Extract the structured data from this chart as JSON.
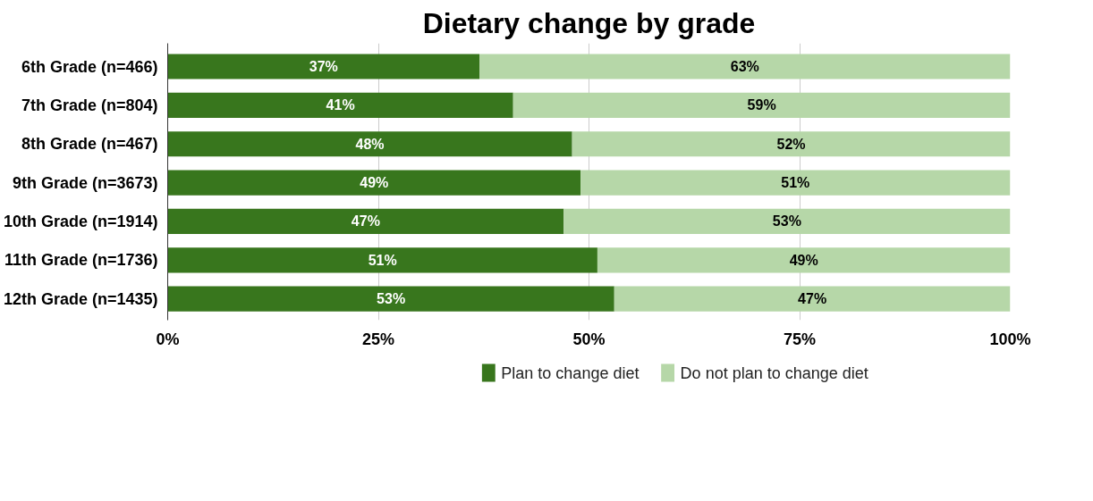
{
  "chart_data": {
    "type": "bar",
    "orientation": "horizontal",
    "stacked": true,
    "title": "Dietary change by grade",
    "categories": [
      "6th Grade (n=466)",
      "7th Grade (n=804)",
      "8th Grade (n=467)",
      "9th Grade (n=3673)",
      "10th Grade (n=1914)",
      "11th Grade (n=1736)",
      "12th Grade (n=1435)"
    ],
    "series": [
      {
        "name": "Plan to change diet",
        "color": "#38761d",
        "values": [
          37,
          41,
          48,
          49,
          47,
          51,
          53
        ],
        "value_labels": [
          "37%",
          "41%",
          "48%",
          "49%",
          "47%",
          "51%",
          "53%"
        ]
      },
      {
        "name": "Do not plan to change diet",
        "color": "#b6d7a8",
        "values": [
          63,
          59,
          52,
          51,
          53,
          49,
          47
        ],
        "value_labels": [
          "63%",
          "59%",
          "52%",
          "51%",
          "53%",
          "49%",
          "47%"
        ]
      }
    ],
    "xlim": [
      0,
      100
    ],
    "xticks": [
      {
        "value": 0,
        "label": "0%"
      },
      {
        "value": 25,
        "label": "25%"
      },
      {
        "value": 50,
        "label": "50%"
      },
      {
        "value": 75,
        "label": "75%"
      },
      {
        "value": 100,
        "label": "100%"
      }
    ],
    "grid": "x",
    "legend": "bottom"
  }
}
